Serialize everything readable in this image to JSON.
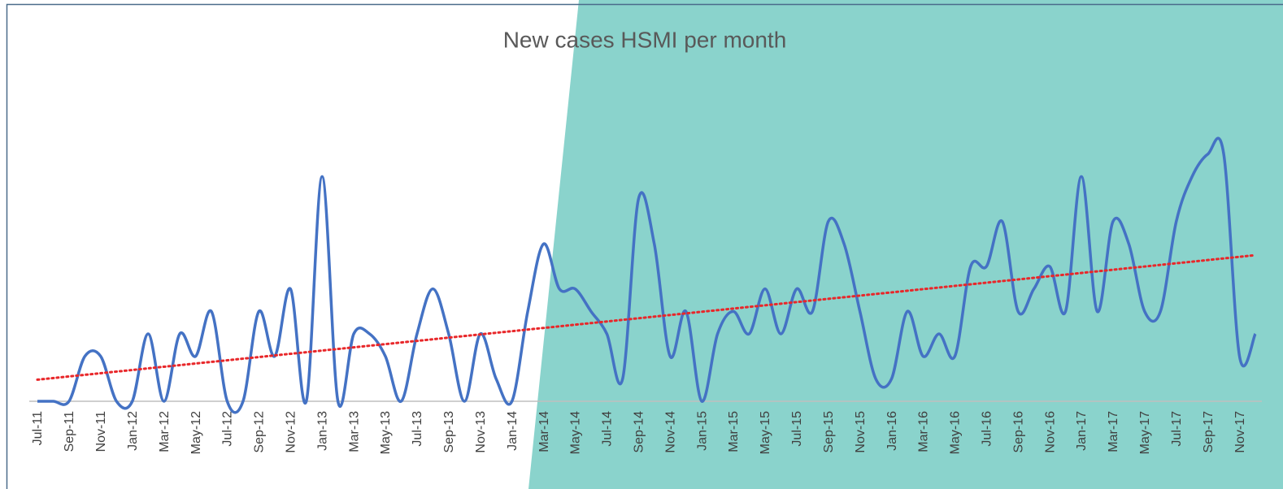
{
  "chart_data": {
    "type": "line",
    "title": "New cases HSMI per month",
    "categories": [
      "Jul-11",
      null,
      "Sep-11",
      null,
      "Nov-11",
      null,
      "Jan-12",
      null,
      "Mar-12",
      null,
      "May-12",
      null,
      "Jul-12",
      null,
      "Sep-12",
      null,
      "Nov-12",
      null,
      "Jan-13",
      null,
      "Mar-13",
      null,
      "May-13",
      null,
      "Jul-13",
      null,
      "Sep-13",
      null,
      "Nov-13",
      null,
      "Jan-14",
      null,
      "Mar-14",
      null,
      "May-14",
      null,
      "Jul-14",
      null,
      "Sep-14",
      null,
      "Nov-14",
      null,
      "Jan-15",
      null,
      "Mar-15",
      null,
      "May-15",
      null,
      "Jul-15",
      null,
      "Sep-15",
      null,
      "Nov-15",
      null,
      "Jan-16",
      null,
      "Mar-16",
      null,
      "May-16",
      null,
      "Jul-16",
      null,
      "Sep-16",
      null,
      "Nov-16",
      null,
      "Jan-17",
      null,
      "Mar-17",
      null,
      "May-17",
      null,
      "Jul-17",
      null,
      "Sep-17",
      null,
      "Nov-17",
      null
    ],
    "series": [
      {
        "color": "#4472c4",
        "values": [
          0,
          0,
          0,
          2,
          2,
          0,
          0,
          3,
          0,
          3,
          2,
          4,
          0,
          0,
          4,
          2,
          5,
          0,
          10,
          0,
          3,
          3,
          2,
          0,
          3,
          5,
          3,
          0,
          3,
          1,
          0,
          4,
          7,
          5,
          5,
          4,
          3,
          1,
          9,
          7,
          2,
          4,
          0,
          3,
          4,
          3,
          5,
          3,
          5,
          4,
          8,
          7,
          4,
          1,
          1,
          4,
          2,
          3,
          2,
          6,
          6,
          8,
          4,
          5,
          6,
          4,
          10,
          4,
          8,
          7,
          4,
          4,
          8,
          10,
          11,
          11,
          2,
          3
        ]
      }
    ],
    "trendline": true,
    "trendline_color": "#e8272a",
    "ylim": [
      0,
      12
    ]
  }
}
